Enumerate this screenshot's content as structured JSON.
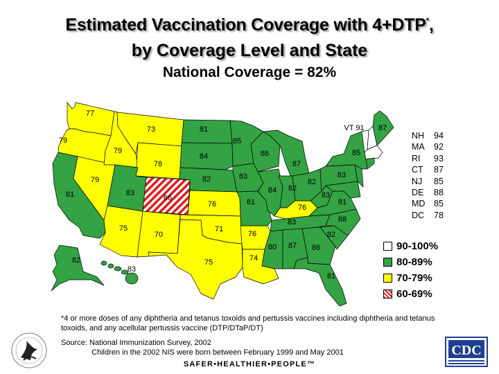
{
  "title": {
    "line1": "Estimated Vaccination Coverage with 4+DTP",
    "line1_sup": "*",
    "line1_end": ",",
    "line2": "by Coverage Level and State",
    "line3": "National Coverage = 82%"
  },
  "colors": {
    "level_90_100": "#ffffff",
    "level_80_89": "#33a343",
    "level_70_79": "#ffff00",
    "level_60_69": "#dd1c1c"
  },
  "states": [
    {
      "abbr": "WA",
      "value": "77"
    },
    {
      "abbr": "OR",
      "value": "79"
    },
    {
      "abbr": "ID",
      "value": "79"
    },
    {
      "abbr": "MT",
      "value": "73"
    },
    {
      "abbr": "WY",
      "value": "78"
    },
    {
      "abbr": "NV",
      "value": "79"
    },
    {
      "abbr": "CA",
      "value": "81"
    },
    {
      "abbr": "UT",
      "value": "83"
    },
    {
      "abbr": "CO",
      "value": "66"
    },
    {
      "abbr": "AZ",
      "value": "75"
    },
    {
      "abbr": "NM",
      "value": "70"
    },
    {
      "abbr": "ND",
      "value": "81"
    },
    {
      "abbr": "SD",
      "value": "84"
    },
    {
      "abbr": "NE",
      "value": "82"
    },
    {
      "abbr": "KS",
      "value": "76"
    },
    {
      "abbr": "OK",
      "value": "71"
    },
    {
      "abbr": "TX",
      "value": "75"
    },
    {
      "abbr": "MN",
      "value": "85"
    },
    {
      "abbr": "IA",
      "value": "83"
    },
    {
      "abbr": "MO",
      "value": "81"
    },
    {
      "abbr": "AR",
      "value": "76"
    },
    {
      "abbr": "LA",
      "value": "74"
    },
    {
      "abbr": "WI",
      "value": "86"
    },
    {
      "abbr": "IL",
      "value": "84"
    },
    {
      "abbr": "MI",
      "value": "87"
    },
    {
      "abbr": "IN",
      "value": "82"
    },
    {
      "abbr": "OH",
      "value": "82"
    },
    {
      "abbr": "KY",
      "value": "76"
    },
    {
      "abbr": "TN",
      "value": "83"
    },
    {
      "abbr": "MS",
      "value": "80"
    },
    {
      "abbr": "AL",
      "value": "87"
    },
    {
      "abbr": "GA",
      "value": "86"
    },
    {
      "abbr": "FL",
      "value": "81"
    },
    {
      "abbr": "SC",
      "value": "82"
    },
    {
      "abbr": "NC",
      "value": "88"
    },
    {
      "abbr": "VA",
      "value": "81"
    },
    {
      "abbr": "WV",
      "value": "83"
    },
    {
      "abbr": "PA",
      "value": "83"
    },
    {
      "abbr": "NY",
      "value": "85"
    },
    {
      "abbr": "VT",
      "value": "VT 91"
    },
    {
      "abbr": "ME",
      "value": "87"
    },
    {
      "abbr": "AK",
      "value": "82"
    },
    {
      "abbr": "HI",
      "value": "83"
    }
  ],
  "sidebar_states": [
    {
      "abbr": "NH",
      "value": "94"
    },
    {
      "abbr": "MA",
      "value": "92"
    },
    {
      "abbr": "RI",
      "value": "93"
    },
    {
      "abbr": "CT",
      "value": "87"
    },
    {
      "abbr": "NJ",
      "value": "85"
    },
    {
      "abbr": "DE",
      "value": "88"
    },
    {
      "abbr": "MD",
      "value": "85"
    },
    {
      "abbr": "DC",
      "value": "78"
    }
  ],
  "legend": [
    {
      "label": "90-100%"
    },
    {
      "label": "80-89%"
    },
    {
      "label": "70-79%"
    },
    {
      "label": "60-69%"
    }
  ],
  "footnote": "*4 or more doses of any diphtheria and tetanus toxoids and pertussis vaccines including diphtheria and tetanus toxoids, and any acellular pertussis vaccine (DTP/DTaP/DT)",
  "source": "Source: National Immunization Survey, 2002",
  "born_note": "Children in the 2002 NIS were born between February 1999 and May 2001",
  "tagline": "SAFER•HEALTHIER•PEOPLE™",
  "logo_text": "CDC"
}
